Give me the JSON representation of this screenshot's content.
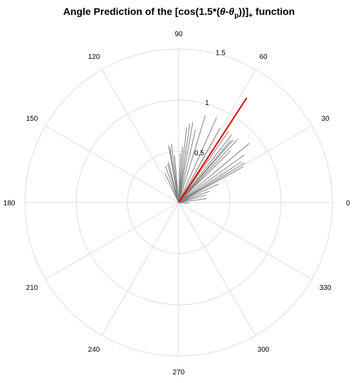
{
  "chart_data": {
    "type": "polar",
    "title": {
      "prefix": "Angle Prediction of the [cos(1.5*(",
      "theta": "θ",
      "minus": "-",
      "theta2": "θ",
      "sub_p": "p",
      "close": "))]",
      "sub_plus": "+",
      "suffix": " function"
    },
    "r_max": 1.5,
    "radial_ticks": [
      0.5,
      1,
      1.5
    ],
    "radial_tick_labels": [
      "0.5",
      "1",
      "1.5"
    ],
    "angular_ticks": [
      0,
      30,
      60,
      90,
      120,
      150,
      180,
      210,
      240,
      270,
      300,
      330
    ],
    "angular_tick_labels": [
      "0",
      "30",
      "60",
      "90",
      "120",
      "150",
      "180",
      "210",
      "240",
      "270",
      "300",
      "330"
    ],
    "grid": true,
    "colors": {
      "grid": "#dddddd",
      "predictions": "#808080",
      "target": "#e00000",
      "text": "#000000"
    },
    "target": {
      "angle": 57,
      "r": 1.22
    },
    "predictions": [
      {
        "angle": 97,
        "r": 0.58
      },
      {
        "angle": 100,
        "r": 0.57
      },
      {
        "angle": 99,
        "r": 0.54
      },
      {
        "angle": 104,
        "r": 0.41
      },
      {
        "angle": 106,
        "r": 0.39
      },
      {
        "angle": 110,
        "r": 0.38
      },
      {
        "angle": 115,
        "r": 0.32
      },
      {
        "angle": 95,
        "r": 0.46
      },
      {
        "angle": 88,
        "r": 0.48
      },
      {
        "angle": 86,
        "r": 0.55
      },
      {
        "angle": 84,
        "r": 0.74
      },
      {
        "angle": 82,
        "r": 0.78
      },
      {
        "angle": 80,
        "r": 0.8
      },
      {
        "angle": 77,
        "r": 0.73
      },
      {
        "angle": 73,
        "r": 0.89
      },
      {
        "angle": 66,
        "r": 0.91
      },
      {
        "angle": 61,
        "r": 0.83
      },
      {
        "angle": 55,
        "r": 0.85
      },
      {
        "angle": 52,
        "r": 0.84
      },
      {
        "angle": 50,
        "r": 0.79
      },
      {
        "angle": 49,
        "r": 0.81
      },
      {
        "angle": 47,
        "r": 0.84
      },
      {
        "angle": 45,
        "r": 0.72
      },
      {
        "angle": 40,
        "r": 0.9
      },
      {
        "angle": 36,
        "r": 0.79
      },
      {
        "angle": 33,
        "r": 0.73
      },
      {
        "angle": 31,
        "r": 0.75
      },
      {
        "angle": 29,
        "r": 0.72
      },
      {
        "angle": 25,
        "r": 0.43
      },
      {
        "angle": 20,
        "r": 0.32
      },
      {
        "angle": 15,
        "r": 0.28
      },
      {
        "angle": 8,
        "r": 0.28
      },
      {
        "angle": -5,
        "r": 0.1
      }
    ]
  }
}
